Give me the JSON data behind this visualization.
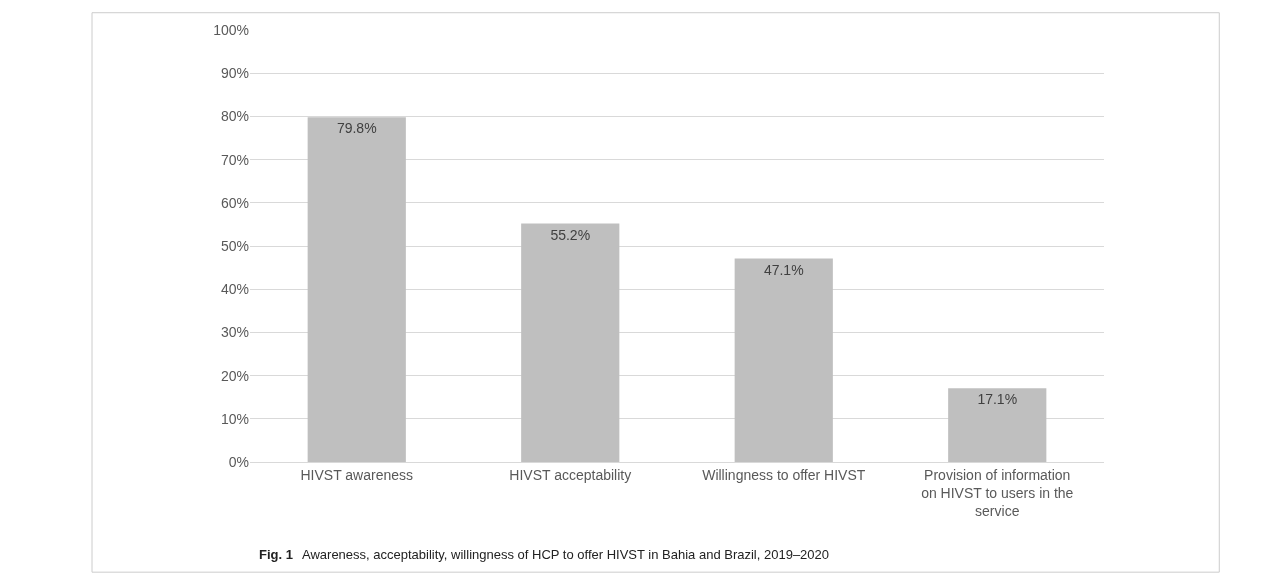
{
  "chart_data": {
    "type": "bar",
    "categories": [
      "HIVST awareness",
      "HIVST acceptability",
      "Willingness to offer HIVST",
      "Provision of information on HIVST to users in the service"
    ],
    "values": [
      79.8,
      55.2,
      47.1,
      17.1
    ],
    "value_labels": [
      "79.8%",
      "55.2%",
      "47.1%",
      "17.1%"
    ],
    "color": "#bfbfbf",
    "ylim": [
      0,
      100
    ],
    "yticks": [
      {
        "value": 0,
        "label": "0%"
      },
      {
        "value": 10,
        "label": "10%"
      },
      {
        "value": 20,
        "label": "20%"
      },
      {
        "value": 30,
        "label": "30%"
      },
      {
        "value": 40,
        "label": "40%"
      },
      {
        "value": 50,
        "label": "50%"
      },
      {
        "value": 60,
        "label": "60%"
      },
      {
        "value": 70,
        "label": "70%"
      },
      {
        "value": 80,
        "label": "80%"
      },
      {
        "value": 90,
        "label": "90%"
      },
      {
        "value": 100,
        "label": "100%"
      }
    ],
    "grid": "y",
    "legend": false,
    "annotations": [
      "Fig. 1",
      "Awareness, acceptability, willingness of HCP to offer HIVST in Bahia and Brazil, 2019–2020"
    ]
  }
}
